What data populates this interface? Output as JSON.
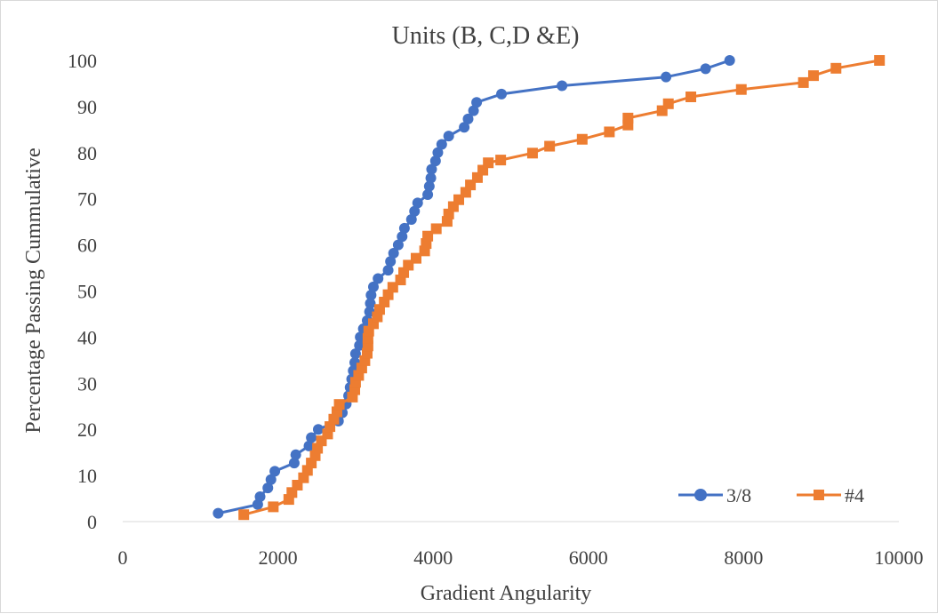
{
  "chart_data": {
    "type": "scatter",
    "title": "Units (B, C,D &E)",
    "xlabel": "Gradient Angularity",
    "ylabel": "Percentage Passing Cummulative",
    "xlim": [
      0,
      10000
    ],
    "ylim": [
      0,
      100
    ],
    "xticks": [
      "0",
      "2000",
      "4000",
      "6000",
      "8000",
      "10000"
    ],
    "yticks": [
      "0",
      "10",
      "20",
      "30",
      "40",
      "50",
      "60",
      "70",
      "80",
      "90",
      "100"
    ],
    "grid": false,
    "legend_position": "bottom-right",
    "series": [
      {
        "name": "3/8",
        "color": "#4472C4",
        "marker": "circle",
        "points": [
          [
            1230,
            1.8
          ],
          [
            1740,
            3.7
          ],
          [
            1770,
            5.4
          ],
          [
            1870,
            7.3
          ],
          [
            1910,
            9.1
          ],
          [
            1960,
            10.9
          ],
          [
            2210,
            12.7
          ],
          [
            2230,
            14.5
          ],
          [
            2400,
            16.4
          ],
          [
            2430,
            18.2
          ],
          [
            2520,
            20.0
          ],
          [
            2780,
            21.8
          ],
          [
            2830,
            23.6
          ],
          [
            2880,
            25.5
          ],
          [
            2910,
            27.3
          ],
          [
            2930,
            29.1
          ],
          [
            2950,
            30.9
          ],
          [
            2970,
            32.7
          ],
          [
            2990,
            34.5
          ],
          [
            3000,
            36.4
          ],
          [
            3050,
            38.2
          ],
          [
            3060,
            40.0
          ],
          [
            3100,
            41.8
          ],
          [
            3150,
            43.6
          ],
          [
            3180,
            45.5
          ],
          [
            3190,
            47.3
          ],
          [
            3200,
            49.1
          ],
          [
            3230,
            50.9
          ],
          [
            3290,
            52.7
          ],
          [
            3420,
            54.5
          ],
          [
            3450,
            56.4
          ],
          [
            3490,
            58.2
          ],
          [
            3550,
            60.0
          ],
          [
            3600,
            61.8
          ],
          [
            3630,
            63.6
          ],
          [
            3720,
            65.5
          ],
          [
            3760,
            67.3
          ],
          [
            3800,
            69.1
          ],
          [
            3930,
            70.9
          ],
          [
            3950,
            72.7
          ],
          [
            3970,
            74.5
          ],
          [
            3980,
            76.4
          ],
          [
            4030,
            78.2
          ],
          [
            4060,
            80.0
          ],
          [
            4110,
            81.8
          ],
          [
            4200,
            83.6
          ],
          [
            4400,
            85.5
          ],
          [
            4450,
            87.3
          ],
          [
            4520,
            89.1
          ],
          [
            4560,
            90.9
          ],
          [
            4880,
            92.7
          ],
          [
            5660,
            94.5
          ],
          [
            7000,
            96.4
          ],
          [
            7510,
            98.2
          ],
          [
            7820,
            100.0
          ]
        ]
      },
      {
        "name": "#4",
        "color": "#ED7D31",
        "marker": "square",
        "points": [
          [
            1560,
            1.5
          ],
          [
            1940,
            3.2
          ],
          [
            2140,
            4.8
          ],
          [
            2180,
            6.3
          ],
          [
            2250,
            7.9
          ],
          [
            2330,
            9.5
          ],
          [
            2380,
            11.1
          ],
          [
            2430,
            12.7
          ],
          [
            2480,
            14.3
          ],
          [
            2510,
            15.9
          ],
          [
            2560,
            17.5
          ],
          [
            2640,
            19.0
          ],
          [
            2670,
            20.6
          ],
          [
            2720,
            22.2
          ],
          [
            2760,
            23.8
          ],
          [
            2790,
            25.4
          ],
          [
            2960,
            27.0
          ],
          [
            2990,
            28.6
          ],
          [
            3000,
            30.2
          ],
          [
            3040,
            31.7
          ],
          [
            3080,
            33.3
          ],
          [
            3120,
            34.9
          ],
          [
            3150,
            36.5
          ],
          [
            3160,
            38.1
          ],
          [
            3160,
            39.7
          ],
          [
            3170,
            41.3
          ],
          [
            3230,
            42.9
          ],
          [
            3280,
            44.4
          ],
          [
            3310,
            46.0
          ],
          [
            3370,
            47.6
          ],
          [
            3420,
            49.2
          ],
          [
            3480,
            50.8
          ],
          [
            3580,
            52.4
          ],
          [
            3620,
            54.0
          ],
          [
            3680,
            55.6
          ],
          [
            3780,
            57.1
          ],
          [
            3890,
            58.7
          ],
          [
            3910,
            60.3
          ],
          [
            3930,
            61.9
          ],
          [
            4040,
            63.5
          ],
          [
            4180,
            65.1
          ],
          [
            4200,
            66.7
          ],
          [
            4260,
            68.3
          ],
          [
            4330,
            69.8
          ],
          [
            4420,
            71.4
          ],
          [
            4480,
            73.0
          ],
          [
            4570,
            74.6
          ],
          [
            4640,
            76.2
          ],
          [
            4710,
            77.8
          ],
          [
            4870,
            78.4
          ],
          [
            5280,
            79.9
          ],
          [
            5500,
            81.4
          ],
          [
            5920,
            82.9
          ],
          [
            6270,
            84.5
          ],
          [
            6510,
            86.0
          ],
          [
            6510,
            87.5
          ],
          [
            6950,
            89.1
          ],
          [
            7030,
            90.6
          ],
          [
            7320,
            92.1
          ],
          [
            7970,
            93.7
          ],
          [
            8770,
            95.2
          ],
          [
            8900,
            96.7
          ],
          [
            9190,
            98.3
          ],
          [
            9750,
            100.0
          ]
        ]
      }
    ]
  }
}
